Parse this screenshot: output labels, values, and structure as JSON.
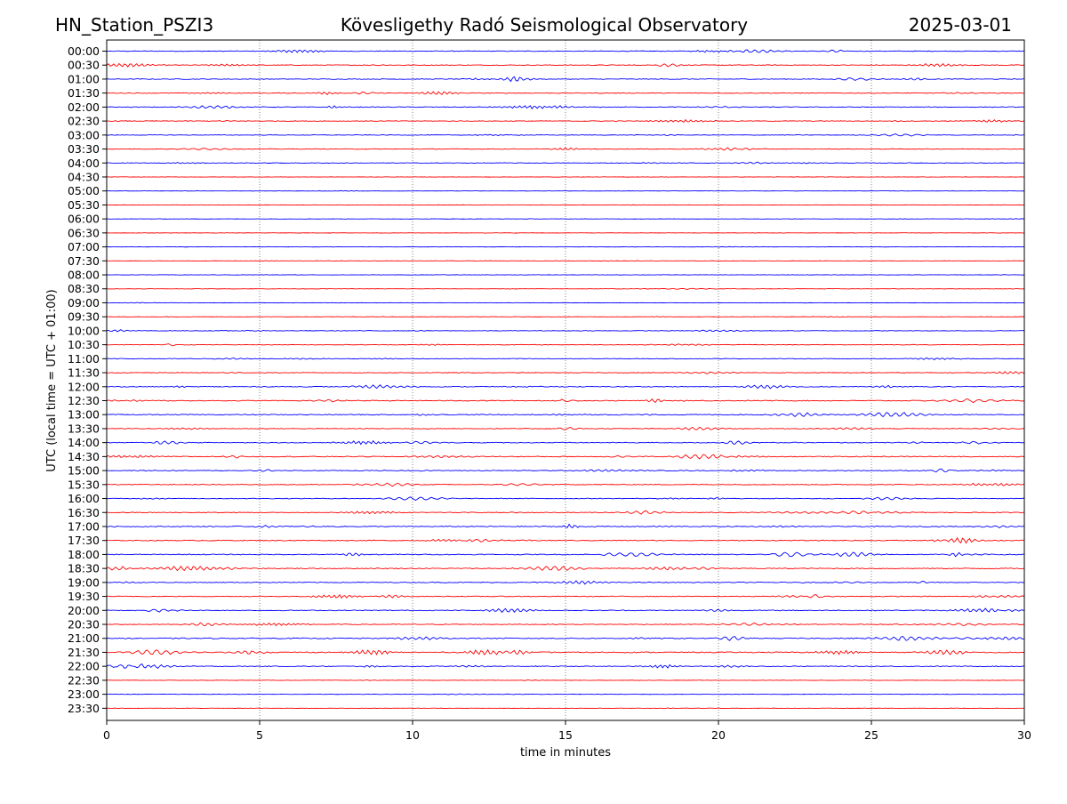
{
  "header": {
    "station": "HN_Station_PSZI3",
    "observatory": "Kövesligethy Radó Seismological Observatory",
    "date": "2025-03-01"
  },
  "chart_data": {
    "type": "line",
    "title": "Kövesligethy Radó Seismological Observatory",
    "xlabel": "time in minutes",
    "ylabel": "UTC (local time = UTC + 01:00)",
    "xlim": [
      0,
      30
    ],
    "xticks": [
      "0",
      "5",
      "10",
      "15",
      "20",
      "25",
      "30"
    ],
    "grid": "vertical dotted lines at 5-minute intervals",
    "series_colors": [
      "#0000ff",
      "#ff0000"
    ],
    "rows": [
      {
        "label": "00:00",
        "activity": 0.45
      },
      {
        "label": "00:30",
        "activity": 0.45
      },
      {
        "label": "01:00",
        "activity": 0.5
      },
      {
        "label": "01:30",
        "activity": 0.45
      },
      {
        "label": "02:00",
        "activity": 0.45
      },
      {
        "label": "02:30",
        "activity": 0.4
      },
      {
        "label": "03:00",
        "activity": 0.35
      },
      {
        "label": "03:30",
        "activity": 0.35
      },
      {
        "label": "04:00",
        "activity": 0.3
      },
      {
        "label": "04:30",
        "activity": 0.08
      },
      {
        "label": "05:00",
        "activity": 0.06
      },
      {
        "label": "05:30",
        "activity": 0.06
      },
      {
        "label": "06:00",
        "activity": 0.06
      },
      {
        "label": "06:30",
        "activity": 0.06
      },
      {
        "label": "07:00",
        "activity": 0.08
      },
      {
        "label": "07:30",
        "activity": 0.08
      },
      {
        "label": "08:00",
        "activity": 0.12
      },
      {
        "label": "08:30",
        "activity": 0.12
      },
      {
        "label": "09:00",
        "activity": 0.1
      },
      {
        "label": "09:30",
        "activity": 0.1
      },
      {
        "label": "10:00",
        "activity": 0.3
      },
      {
        "label": "10:30",
        "activity": 0.3
      },
      {
        "label": "11:00",
        "activity": 0.3
      },
      {
        "label": "11:30",
        "activity": 0.35
      },
      {
        "label": "12:00",
        "activity": 0.55
      },
      {
        "label": "12:30",
        "activity": 0.6
      },
      {
        "label": "13:00",
        "activity": 0.6
      },
      {
        "label": "13:30",
        "activity": 0.4
      },
      {
        "label": "14:00",
        "activity": 0.55
      },
      {
        "label": "14:30",
        "activity": 0.6
      },
      {
        "label": "15:00",
        "activity": 0.5
      },
      {
        "label": "15:30",
        "activity": 0.45
      },
      {
        "label": "16:00",
        "activity": 0.45
      },
      {
        "label": "16:30",
        "activity": 0.5
      },
      {
        "label": "17:00",
        "activity": 0.6
      },
      {
        "label": "17:30",
        "activity": 0.55
      },
      {
        "label": "18:00",
        "activity": 0.6
      },
      {
        "label": "18:30",
        "activity": 0.65
      },
      {
        "label": "19:00",
        "activity": 0.5
      },
      {
        "label": "19:30",
        "activity": 0.5
      },
      {
        "label": "20:00",
        "activity": 0.55
      },
      {
        "label": "20:30",
        "activity": 0.5
      },
      {
        "label": "21:00",
        "activity": 0.7
      },
      {
        "label": "21:30",
        "activity": 0.75
      },
      {
        "label": "22:00",
        "activity": 0.5
      },
      {
        "label": "22:30",
        "activity": 0.15
      },
      {
        "label": "23:00",
        "activity": 0.12
      },
      {
        "label": "23:30",
        "activity": 0.12
      }
    ]
  }
}
